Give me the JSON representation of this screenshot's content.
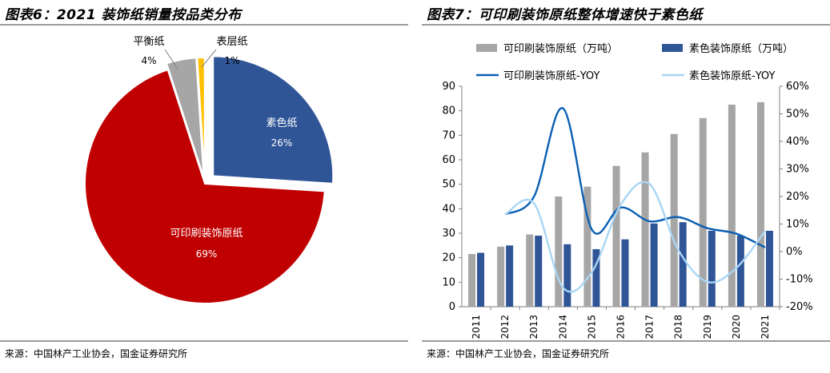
{
  "left": {
    "title": "图表6：2021 装饰纸销量按品类分布",
    "source": "来源：中国林产工业协会，国金证券研究所",
    "chart_data": {
      "type": "pie",
      "slices": [
        {
          "name": "素色纸",
          "value": 26,
          "label": "26%",
          "color": "#2f5597"
        },
        {
          "name": "可印刷装饰原纸",
          "value": 69,
          "label": "69%",
          "color": "#c00000"
        },
        {
          "name": "平衡纸",
          "value": 4,
          "label": "4%",
          "color": "#a6a6a6"
        },
        {
          "name": "表层纸",
          "value": 1,
          "label": "1%",
          "color": "#ffc000"
        }
      ]
    }
  },
  "right": {
    "title": "图表7：可印刷装饰原纸整体增速快于素色纸",
    "source": "来源：中国林产工业协会，国金证券研究所",
    "chart_data": {
      "type": "bar",
      "categories": [
        "2011",
        "2012",
        "2013",
        "2014",
        "2015",
        "2016",
        "2017",
        "2018",
        "2019",
        "2020",
        "2021"
      ],
      "series": [
        {
          "name": "可印刷装饰原纸（万吨）",
          "type": "bar",
          "axis": "left",
          "color": "#a6a6a6",
          "values": [
            21.5,
            24.5,
            29.5,
            45,
            49,
            57.5,
            63,
            70.5,
            77,
            82.5,
            83.5
          ]
        },
        {
          "name": "素色装饰原纸（万吨）",
          "type": "bar",
          "axis": "left",
          "color": "#2f5597",
          "values": [
            22,
            25,
            29,
            25.5,
            23.5,
            27.5,
            34,
            34.5,
            31,
            29,
            31
          ]
        },
        {
          "name": "可印刷装饰原纸-YOY",
          "type": "line",
          "axis": "right",
          "color": "#0a5fb4",
          "values": [
            null,
            13.5,
            20,
            52,
            8,
            16,
            11,
            12.5,
            8.5,
            6.5,
            1.5
          ]
        },
        {
          "name": "素色装饰原纸-YOY",
          "type": "line",
          "axis": "right",
          "color": "#a9d6f5",
          "values": [
            null,
            13.5,
            17.5,
            -13,
            -7.5,
            17,
            24.5,
            0.5,
            -11,
            -6,
            7.5
          ]
        }
      ],
      "y_left": {
        "min": 0,
        "max": 90,
        "ticks": [
          "0",
          "10",
          "20",
          "30",
          "40",
          "50",
          "60",
          "70",
          "80",
          "90"
        ]
      },
      "y_right": {
        "min": -20,
        "max": 60,
        "ticks": [
          "-20%",
          "-10%",
          "0%",
          "10%",
          "20%",
          "30%",
          "40%",
          "50%",
          "60%"
        ]
      },
      "legend_position": "top"
    }
  }
}
